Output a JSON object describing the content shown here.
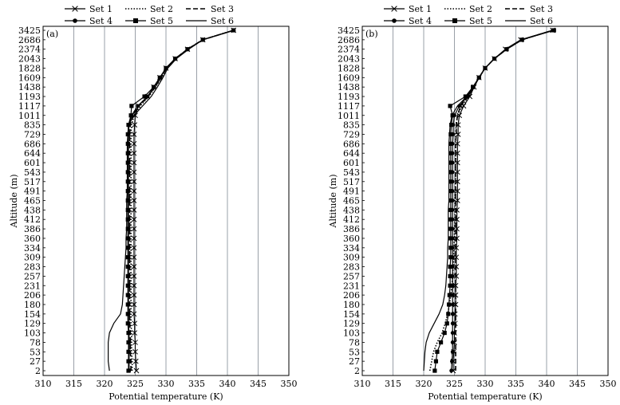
{
  "chart_data": [
    {
      "type": "line",
      "panel_label": "(a)",
      "xlabel": "Potential temperature (K)",
      "ylabel": "Altitude (m)",
      "xlim": [
        310,
        350
      ],
      "x_ticks": [
        310,
        315,
        320,
        325,
        330,
        335,
        340,
        345,
        350
      ],
      "y_categories": [
        "2",
        "27",
        "53",
        "78",
        "103",
        "129",
        "154",
        "180",
        "206",
        "231",
        "257",
        "283",
        "309",
        "334",
        "360",
        "386",
        "412",
        "438",
        "465",
        "491",
        "517",
        "543",
        "601",
        "644",
        "686",
        "729",
        "835",
        "1011",
        "1117",
        "1193",
        "1438",
        "1609",
        "1828",
        "2043",
        "2374",
        "2686",
        "3425"
      ],
      "grid": "vertical",
      "legend_placement": "top",
      "series": [
        {
          "name": "Set 1",
          "values": [
            325.2,
            325.1,
            325.0,
            325.0,
            324.9,
            324.9,
            324.8,
            324.8,
            324.8,
            324.8,
            324.8,
            324.8,
            324.8,
            324.8,
            324.8,
            324.8,
            324.8,
            324.8,
            324.8,
            324.8,
            324.8,
            324.8,
            324.8,
            324.8,
            324.8,
            324.8,
            324.9,
            325.0,
            325.5,
            327.0,
            328.0,
            329.0,
            330.0,
            331.5,
            333.5,
            336.0,
            341.0
          ]
        },
        {
          "name": "Set 2",
          "values": [
            324.5,
            324.5,
            324.4,
            324.4,
            324.4,
            324.3,
            324.3,
            324.3,
            324.3,
            324.3,
            324.3,
            324.3,
            324.3,
            324.3,
            324.3,
            324.3,
            324.3,
            324.3,
            324.3,
            324.3,
            324.3,
            324.3,
            324.3,
            324.3,
            324.3,
            324.3,
            324.4,
            324.8,
            325.8,
            327.2,
            328.3,
            329.3,
            330.2,
            331.6,
            333.6,
            336.0,
            341.0
          ]
        },
        {
          "name": "Set 3",
          "values": [
            324.3,
            324.3,
            324.2,
            324.2,
            324.2,
            324.1,
            324.1,
            324.1,
            324.1,
            324.1,
            324.1,
            324.1,
            324.1,
            324.1,
            324.1,
            324.1,
            324.1,
            324.1,
            324.1,
            324.1,
            324.1,
            324.1,
            324.1,
            324.1,
            324.1,
            324.1,
            324.2,
            324.6,
            325.6,
            327.1,
            328.2,
            329.2,
            330.1,
            331.5,
            333.5,
            336.0,
            341.0
          ]
        },
        {
          "name": "Set 4",
          "values": [
            324.0,
            324.0,
            324.0,
            324.0,
            324.0,
            323.9,
            323.9,
            323.9,
            323.9,
            323.9,
            323.9,
            323.9,
            323.9,
            323.9,
            323.9,
            323.9,
            323.9,
            323.9,
            323.9,
            323.9,
            323.9,
            323.9,
            323.9,
            323.9,
            323.9,
            323.9,
            324.0,
            324.4,
            325.4,
            327.0,
            328.1,
            329.1,
            330.0,
            331.5,
            333.5,
            336.0,
            341.0
          ]
        },
        {
          "name": "Set 5",
          "values": [
            323.9,
            323.9,
            323.9,
            323.9,
            323.9,
            323.8,
            323.8,
            323.8,
            323.8,
            323.8,
            323.8,
            323.8,
            323.8,
            323.8,
            323.8,
            323.8,
            323.8,
            323.8,
            323.8,
            323.8,
            323.8,
            323.8,
            323.8,
            323.8,
            323.8,
            323.8,
            323.9,
            324.3,
            324.4,
            326.5,
            328.0,
            329.0,
            330.0,
            331.5,
            333.5,
            336.0,
            341.0
          ]
        },
        {
          "name": "Set 6",
          "values": [
            320.8,
            320.6,
            320.6,
            320.6,
            320.8,
            321.5,
            322.6,
            322.9,
            323.0,
            323.1,
            323.2,
            323.3,
            323.4,
            323.5,
            323.5,
            323.6,
            323.6,
            323.6,
            323.6,
            323.7,
            323.7,
            323.7,
            323.7,
            323.7,
            323.7,
            323.8,
            323.9,
            324.8,
            326.2,
            327.6,
            328.6,
            329.5,
            330.3,
            331.7,
            333.7,
            336.0,
            341.0
          ]
        }
      ]
    },
    {
      "type": "line",
      "panel_label": "(b)",
      "xlabel": "Potential temperature (K)",
      "ylabel": "Altitude (m)",
      "xlim": [
        310,
        350
      ],
      "x_ticks": [
        310,
        315,
        320,
        325,
        330,
        335,
        340,
        345,
        350
      ],
      "y_categories": [
        "2",
        "27",
        "53",
        "78",
        "103",
        "129",
        "154",
        "180",
        "206",
        "231",
        "257",
        "283",
        "309",
        "334",
        "360",
        "386",
        "412",
        "438",
        "465",
        "491",
        "517",
        "543",
        "601",
        "644",
        "686",
        "729",
        "835",
        "1011",
        "1117",
        "1193",
        "1438",
        "1609",
        "1828",
        "2043",
        "2374",
        "2686",
        "3425"
      ],
      "grid": "vertical",
      "legend_placement": "top",
      "series": [
        {
          "name": "Set 1",
          "values": [
            324.8,
            324.8,
            324.9,
            325.0,
            325.0,
            325.1,
            325.1,
            325.2,
            325.2,
            325.2,
            325.3,
            325.3,
            325.3,
            325.3,
            325.4,
            325.4,
            325.4,
            325.4,
            325.5,
            325.5,
            325.5,
            325.5,
            325.5,
            325.5,
            325.5,
            325.6,
            325.6,
            325.8,
            326.5,
            327.5,
            328.2,
            329.0,
            330.0,
            331.5,
            333.3,
            335.8,
            341.0
          ]
        },
        {
          "name": "Set 2",
          "values": [
            321.0,
            321.3,
            321.6,
            322.2,
            323.0,
            323.5,
            323.9,
            324.2,
            324.4,
            324.6,
            324.7,
            324.8,
            324.9,
            324.9,
            325.0,
            325.0,
            325.1,
            325.1,
            325.1,
            325.1,
            325.2,
            325.2,
            325.2,
            325.2,
            325.2,
            325.2,
            325.3,
            325.5,
            326.2,
            327.3,
            328.2,
            329.0,
            330.0,
            331.5,
            333.5,
            336.0,
            341.0
          ]
        },
        {
          "name": "Set 3",
          "values": [
            325.2,
            325.2,
            325.2,
            325.2,
            325.2,
            325.2,
            325.2,
            325.2,
            325.2,
            325.2,
            325.2,
            325.2,
            325.2,
            325.2,
            325.2,
            325.2,
            325.2,
            325.2,
            325.2,
            325.2,
            325.2,
            325.2,
            325.2,
            325.2,
            325.2,
            325.3,
            325.3,
            325.5,
            326.0,
            327.2,
            328.1,
            329.0,
            330.0,
            331.5,
            333.5,
            336.0,
            341.0
          ]
        },
        {
          "name": "Set 4",
          "values": [
            324.5,
            324.6,
            324.7,
            324.7,
            324.7,
            324.7,
            324.7,
            324.7,
            324.7,
            324.7,
            324.7,
            324.7,
            324.7,
            324.7,
            324.7,
            324.7,
            324.7,
            324.7,
            324.7,
            324.7,
            324.7,
            324.7,
            324.7,
            324.7,
            324.7,
            324.8,
            324.8,
            325.0,
            325.8,
            327.1,
            328.1,
            329.0,
            330.0,
            331.5,
            333.5,
            336.0,
            341.0
          ]
        },
        {
          "name": "Set 5",
          "values": [
            321.8,
            322.0,
            322.2,
            322.8,
            323.4,
            323.8,
            324.0,
            324.1,
            324.2,
            324.3,
            324.3,
            324.3,
            324.4,
            324.4,
            324.4,
            324.4,
            324.4,
            324.4,
            324.4,
            324.4,
            324.4,
            324.4,
            324.4,
            324.4,
            324.4,
            324.4,
            324.5,
            324.7,
            324.3,
            326.8,
            328.0,
            329.0,
            330.0,
            331.5,
            333.5,
            336.0,
            341.2
          ]
        },
        {
          "name": "Set 6",
          "values": [
            320.0,
            320.1,
            320.2,
            320.4,
            320.9,
            321.7,
            322.5,
            323.1,
            323.4,
            323.6,
            323.7,
            323.8,
            323.9,
            323.9,
            324.0,
            324.0,
            324.0,
            324.0,
            324.1,
            324.1,
            324.1,
            324.1,
            324.1,
            324.1,
            324.1,
            324.2,
            324.3,
            324.6,
            325.5,
            327.0,
            328.0,
            329.0,
            330.0,
            331.5,
            333.5,
            336.0,
            341.0
          ]
        }
      ]
    }
  ]
}
